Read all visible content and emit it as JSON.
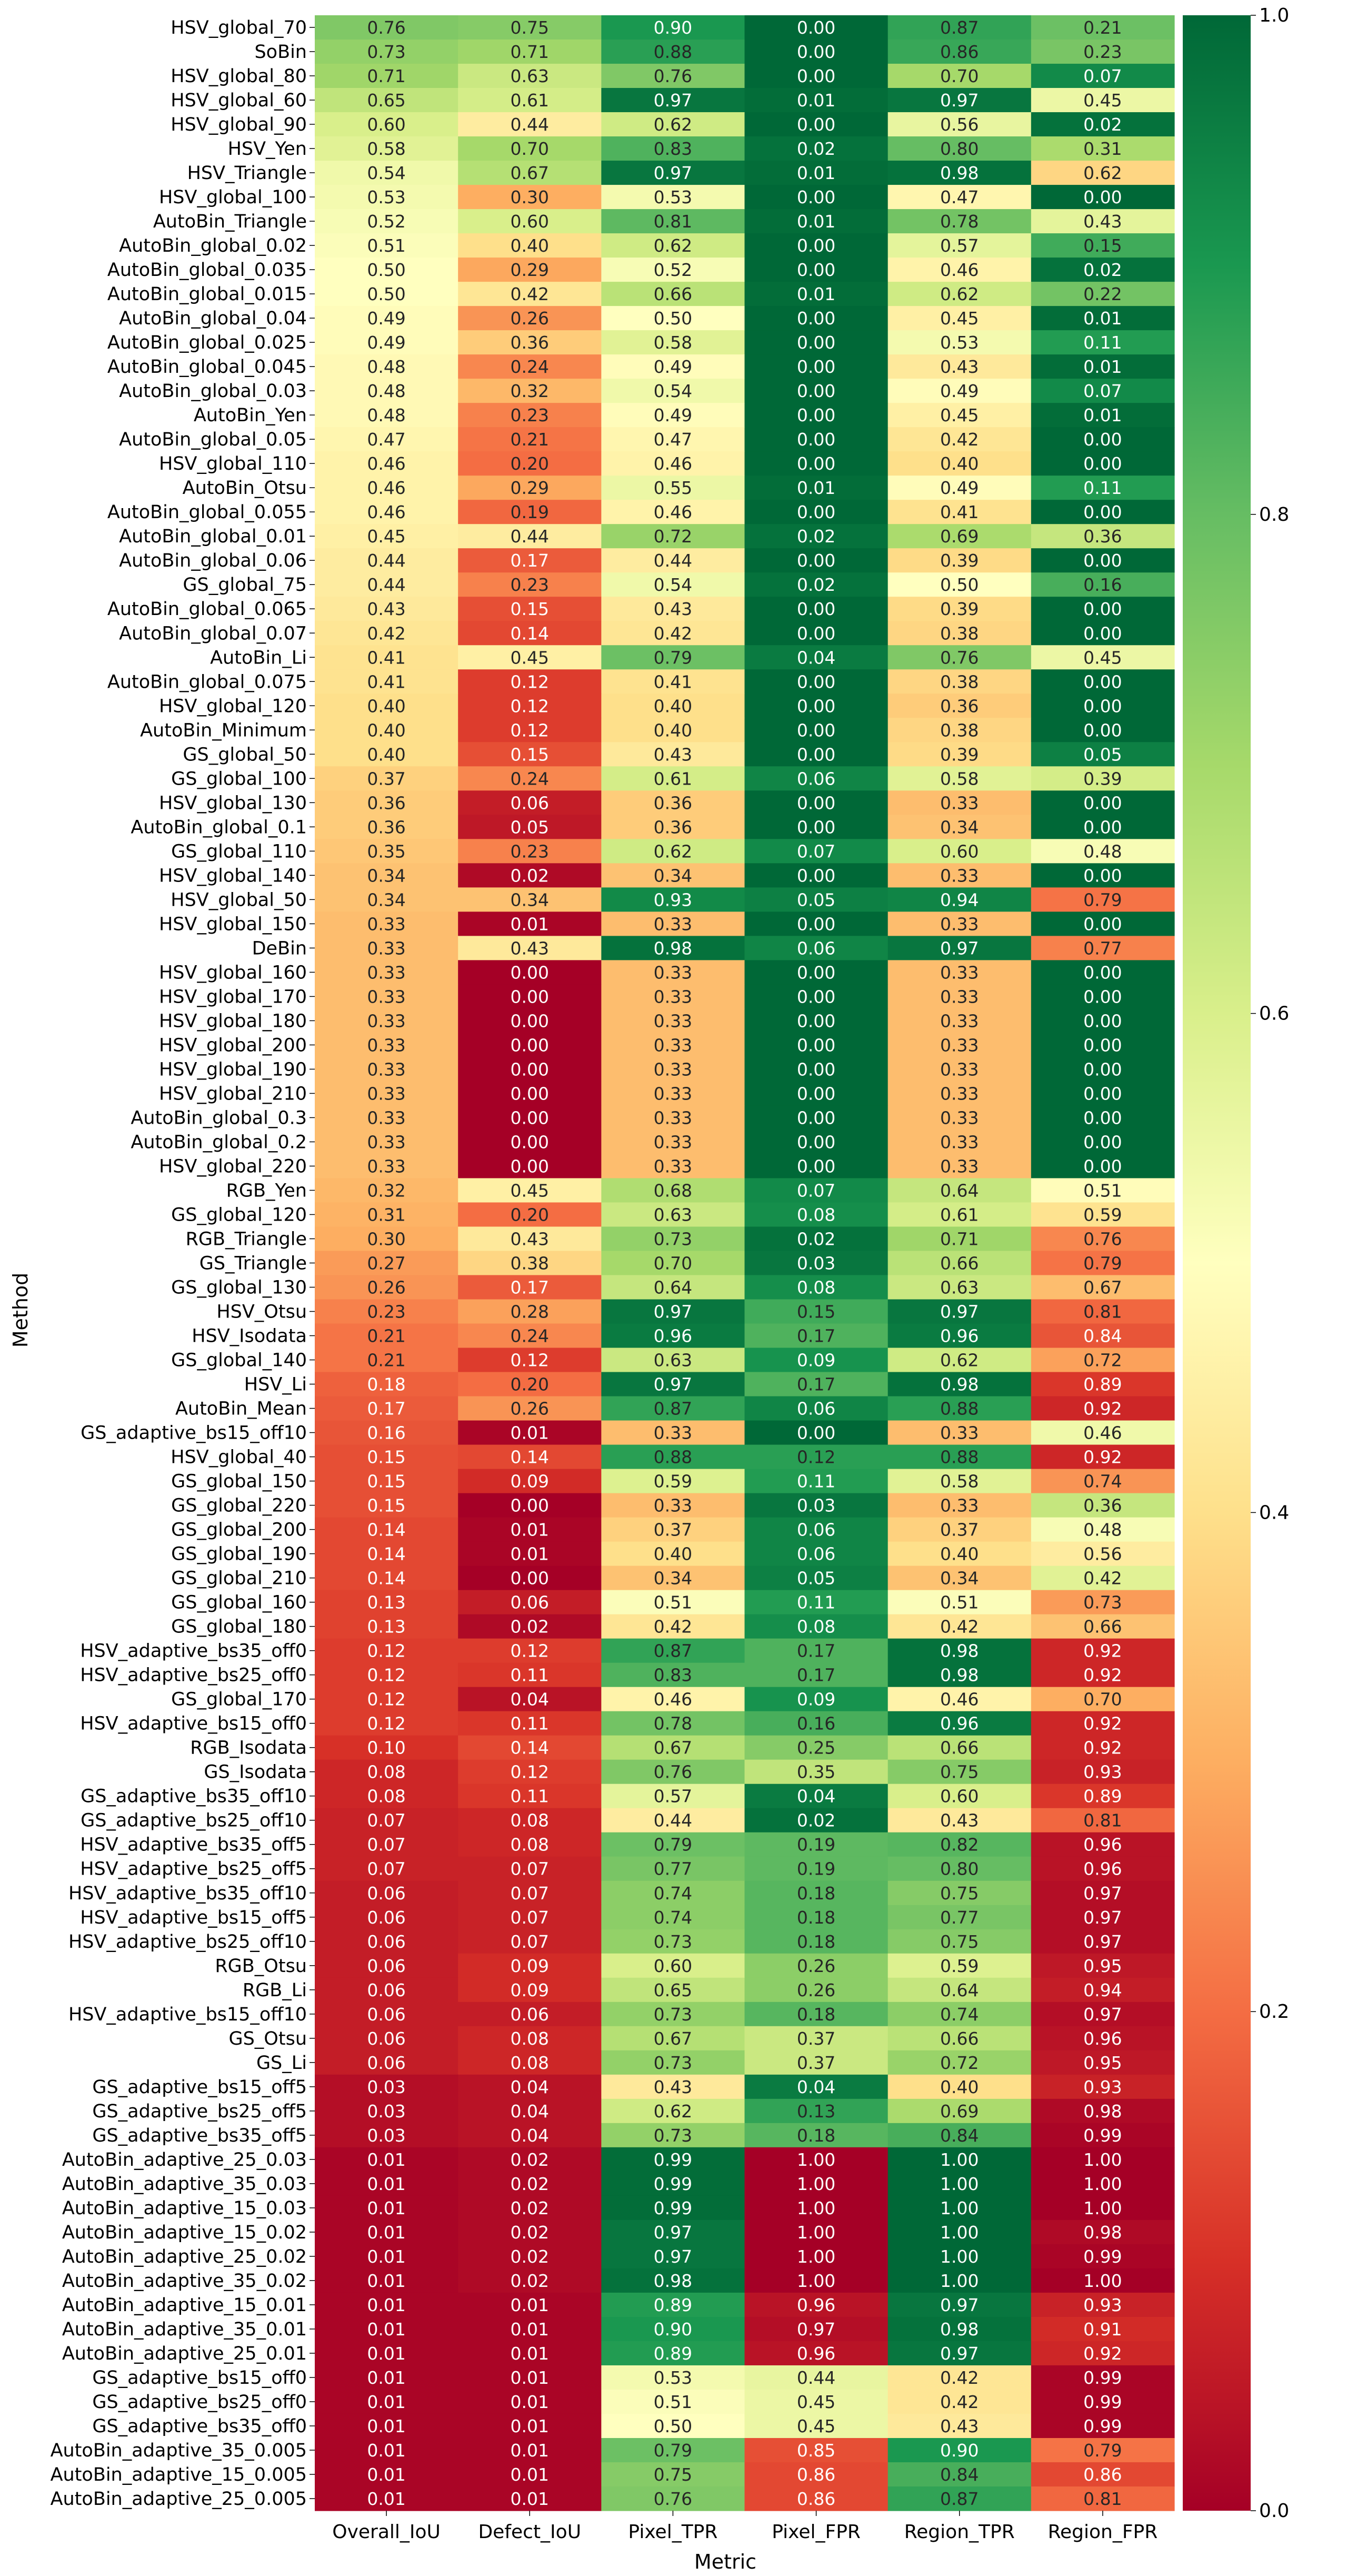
{
  "chart_data": {
    "type": "heatmap",
    "xlabel": "Metric",
    "ylabel": "Method",
    "columns": [
      "Overall_IoU",
      "Defect_IoU",
      "Pixel_TPR",
      "Pixel_FPR",
      "Region_TPR",
      "Region_FPR"
    ],
    "rows": [
      "HSV_global_70",
      "SoBin",
      "HSV_global_80",
      "HSV_global_60",
      "HSV_global_90",
      "HSV_Yen",
      "HSV_Triangle",
      "HSV_global_100",
      "AutoBin_Triangle",
      "AutoBin_global_0.02",
      "AutoBin_global_0.035",
      "AutoBin_global_0.015",
      "AutoBin_global_0.04",
      "AutoBin_global_0.025",
      "AutoBin_global_0.045",
      "AutoBin_global_0.03",
      "AutoBin_Yen",
      "AutoBin_global_0.05",
      "HSV_global_110",
      "AutoBin_Otsu",
      "AutoBin_global_0.055",
      "AutoBin_global_0.01",
      "AutoBin_global_0.06",
      "GS_global_75",
      "AutoBin_global_0.065",
      "AutoBin_global_0.07",
      "AutoBin_Li",
      "AutoBin_global_0.075",
      "HSV_global_120",
      "AutoBin_Minimum",
      "GS_global_50",
      "GS_global_100",
      "HSV_global_130",
      "AutoBin_global_0.1",
      "GS_global_110",
      "HSV_global_140",
      "HSV_global_50",
      "HSV_global_150",
      "DeBin",
      "HSV_global_160",
      "HSV_global_170",
      "HSV_global_180",
      "HSV_global_200",
      "HSV_global_190",
      "HSV_global_210",
      "AutoBin_global_0.3",
      "AutoBin_global_0.2",
      "HSV_global_220",
      "RGB_Yen",
      "GS_global_120",
      "RGB_Triangle",
      "GS_Triangle",
      "GS_global_130",
      "HSV_Otsu",
      "HSV_Isodata",
      "GS_global_140",
      "HSV_Li",
      "AutoBin_Mean",
      "GS_adaptive_bs15_off10",
      "HSV_global_40",
      "GS_global_150",
      "GS_global_220",
      "GS_global_200",
      "GS_global_190",
      "GS_global_210",
      "GS_global_160",
      "GS_global_180",
      "HSV_adaptive_bs35_off0",
      "HSV_adaptive_bs25_off0",
      "GS_global_170",
      "HSV_adaptive_bs15_off0",
      "RGB_Isodata",
      "GS_Isodata",
      "GS_adaptive_bs35_off10",
      "GS_adaptive_bs25_off10",
      "HSV_adaptive_bs35_off5",
      "HSV_adaptive_bs25_off5",
      "HSV_adaptive_bs35_off10",
      "HSV_adaptive_bs15_off5",
      "HSV_adaptive_bs25_off10",
      "RGB_Otsu",
      "RGB_Li",
      "HSV_adaptive_bs15_off10",
      "GS_Otsu",
      "GS_Li",
      "GS_adaptive_bs15_off5",
      "GS_adaptive_bs25_off5",
      "GS_adaptive_bs35_off5",
      "AutoBin_adaptive_25_0.03",
      "AutoBin_adaptive_35_0.03",
      "AutoBin_adaptive_15_0.03",
      "AutoBin_adaptive_15_0.02",
      "AutoBin_adaptive_25_0.02",
      "AutoBin_adaptive_35_0.02",
      "AutoBin_adaptive_15_0.01",
      "AutoBin_adaptive_35_0.01",
      "AutoBin_adaptive_25_0.01",
      "GS_adaptive_bs15_off0",
      "GS_adaptive_bs25_off0",
      "GS_adaptive_bs35_off0",
      "AutoBin_adaptive_35_0.005",
      "AutoBin_adaptive_15_0.005",
      "AutoBin_adaptive_25_0.005"
    ],
    "values": [
      [
        0.76,
        0.75,
        0.9,
        0.0,
        0.87,
        0.21
      ],
      [
        0.73,
        0.71,
        0.88,
        0.0,
        0.86,
        0.23
      ],
      [
        0.71,
        0.63,
        0.76,
        0.0,
        0.7,
        0.07
      ],
      [
        0.65,
        0.61,
        0.97,
        0.01,
        0.97,
        0.45
      ],
      [
        0.6,
        0.44,
        0.62,
        0.0,
        0.56,
        0.02
      ],
      [
        0.58,
        0.7,
        0.83,
        0.02,
        0.8,
        0.31
      ],
      [
        0.54,
        0.67,
        0.97,
        0.01,
        0.98,
        0.62
      ],
      [
        0.53,
        0.3,
        0.53,
        0.0,
        0.47,
        0.0
      ],
      [
        0.52,
        0.6,
        0.81,
        0.01,
        0.78,
        0.43
      ],
      [
        0.51,
        0.4,
        0.62,
        0.0,
        0.57,
        0.15
      ],
      [
        0.5,
        0.29,
        0.52,
        0.0,
        0.46,
        0.02
      ],
      [
        0.5,
        0.42,
        0.66,
        0.01,
        0.62,
        0.22
      ],
      [
        0.49,
        0.26,
        0.5,
        0.0,
        0.45,
        0.01
      ],
      [
        0.49,
        0.36,
        0.58,
        0.0,
        0.53,
        0.11
      ],
      [
        0.48,
        0.24,
        0.49,
        0.0,
        0.43,
        0.01
      ],
      [
        0.48,
        0.32,
        0.54,
        0.0,
        0.49,
        0.07
      ],
      [
        0.48,
        0.23,
        0.49,
        0.0,
        0.45,
        0.01
      ],
      [
        0.47,
        0.21,
        0.47,
        0.0,
        0.42,
        0.0
      ],
      [
        0.46,
        0.2,
        0.46,
        0.0,
        0.4,
        0.0
      ],
      [
        0.46,
        0.29,
        0.55,
        0.01,
        0.49,
        0.11
      ],
      [
        0.46,
        0.19,
        0.46,
        0.0,
        0.41,
        0.0
      ],
      [
        0.45,
        0.44,
        0.72,
        0.02,
        0.69,
        0.36
      ],
      [
        0.44,
        0.17,
        0.44,
        0.0,
        0.39,
        0.0
      ],
      [
        0.44,
        0.23,
        0.54,
        0.02,
        0.5,
        0.16
      ],
      [
        0.43,
        0.15,
        0.43,
        0.0,
        0.39,
        0.0
      ],
      [
        0.42,
        0.14,
        0.42,
        0.0,
        0.38,
        0.0
      ],
      [
        0.41,
        0.45,
        0.79,
        0.04,
        0.76,
        0.45
      ],
      [
        0.41,
        0.12,
        0.41,
        0.0,
        0.38,
        0.0
      ],
      [
        0.4,
        0.12,
        0.4,
        0.0,
        0.36,
        0.0
      ],
      [
        0.4,
        0.12,
        0.4,
        0.0,
        0.38,
        0.0
      ],
      [
        0.4,
        0.15,
        0.43,
        0.0,
        0.39,
        0.05
      ],
      [
        0.37,
        0.24,
        0.61,
        0.06,
        0.58,
        0.39
      ],
      [
        0.36,
        0.06,
        0.36,
        0.0,
        0.33,
        0.0
      ],
      [
        0.36,
        0.05,
        0.36,
        0.0,
        0.34,
        0.0
      ],
      [
        0.35,
        0.23,
        0.62,
        0.07,
        0.6,
        0.48
      ],
      [
        0.34,
        0.02,
        0.34,
        0.0,
        0.33,
        0.0
      ],
      [
        0.34,
        0.34,
        0.93,
        0.05,
        0.94,
        0.79
      ],
      [
        0.33,
        0.01,
        0.33,
        0.0,
        0.33,
        0.0
      ],
      [
        0.33,
        0.43,
        0.98,
        0.06,
        0.97,
        0.77
      ],
      [
        0.33,
        0.0,
        0.33,
        0.0,
        0.33,
        0.0
      ],
      [
        0.33,
        0.0,
        0.33,
        0.0,
        0.33,
        0.0
      ],
      [
        0.33,
        0.0,
        0.33,
        0.0,
        0.33,
        0.0
      ],
      [
        0.33,
        0.0,
        0.33,
        0.0,
        0.33,
        0.0
      ],
      [
        0.33,
        0.0,
        0.33,
        0.0,
        0.33,
        0.0
      ],
      [
        0.33,
        0.0,
        0.33,
        0.0,
        0.33,
        0.0
      ],
      [
        0.33,
        0.0,
        0.33,
        0.0,
        0.33,
        0.0
      ],
      [
        0.33,
        0.0,
        0.33,
        0.0,
        0.33,
        0.0
      ],
      [
        0.33,
        0.0,
        0.33,
        0.0,
        0.33,
        0.0
      ],
      [
        0.32,
        0.45,
        0.68,
        0.07,
        0.64,
        0.51
      ],
      [
        0.31,
        0.2,
        0.63,
        0.08,
        0.61,
        0.59
      ],
      [
        0.3,
        0.43,
        0.73,
        0.02,
        0.71,
        0.76
      ],
      [
        0.27,
        0.38,
        0.7,
        0.03,
        0.66,
        0.79
      ],
      [
        0.26,
        0.17,
        0.64,
        0.08,
        0.63,
        0.67
      ],
      [
        0.23,
        0.28,
        0.97,
        0.15,
        0.97,
        0.81
      ],
      [
        0.21,
        0.24,
        0.96,
        0.17,
        0.96,
        0.84
      ],
      [
        0.21,
        0.12,
        0.63,
        0.09,
        0.62,
        0.72
      ],
      [
        0.18,
        0.2,
        0.97,
        0.17,
        0.98,
        0.89
      ],
      [
        0.17,
        0.26,
        0.87,
        0.06,
        0.88,
        0.92
      ],
      [
        0.16,
        0.01,
        0.33,
        0.0,
        0.33,
        0.46
      ],
      [
        0.15,
        0.14,
        0.88,
        0.12,
        0.88,
        0.92
      ],
      [
        0.15,
        0.09,
        0.59,
        0.11,
        0.58,
        0.74
      ],
      [
        0.15,
        0.0,
        0.33,
        0.03,
        0.33,
        0.36
      ],
      [
        0.14,
        0.01,
        0.37,
        0.06,
        0.37,
        0.48
      ],
      [
        0.14,
        0.01,
        0.4,
        0.06,
        0.4,
        0.56
      ],
      [
        0.14,
        0.0,
        0.34,
        0.05,
        0.34,
        0.42
      ],
      [
        0.13,
        0.06,
        0.51,
        0.11,
        0.51,
        0.73
      ],
      [
        0.13,
        0.02,
        0.42,
        0.08,
        0.42,
        0.66
      ],
      [
        0.12,
        0.12,
        0.87,
        0.17,
        0.98,
        0.92
      ],
      [
        0.12,
        0.11,
        0.83,
        0.17,
        0.98,
        0.92
      ],
      [
        0.12,
        0.04,
        0.46,
        0.09,
        0.46,
        0.7
      ],
      [
        0.12,
        0.11,
        0.78,
        0.16,
        0.96,
        0.92
      ],
      [
        0.1,
        0.14,
        0.67,
        0.25,
        0.66,
        0.92
      ],
      [
        0.08,
        0.12,
        0.76,
        0.35,
        0.75,
        0.93
      ],
      [
        0.08,
        0.11,
        0.57,
        0.04,
        0.6,
        0.89
      ],
      [
        0.07,
        0.08,
        0.44,
        0.02,
        0.43,
        0.81
      ],
      [
        0.07,
        0.08,
        0.79,
        0.19,
        0.82,
        0.96
      ],
      [
        0.07,
        0.07,
        0.77,
        0.19,
        0.8,
        0.96
      ],
      [
        0.06,
        0.07,
        0.74,
        0.18,
        0.75,
        0.97
      ],
      [
        0.06,
        0.07,
        0.74,
        0.18,
        0.77,
        0.97
      ],
      [
        0.06,
        0.07,
        0.73,
        0.18,
        0.75,
        0.97
      ],
      [
        0.06,
        0.09,
        0.6,
        0.26,
        0.59,
        0.95
      ],
      [
        0.06,
        0.09,
        0.65,
        0.26,
        0.64,
        0.94
      ],
      [
        0.06,
        0.06,
        0.73,
        0.18,
        0.74,
        0.97
      ],
      [
        0.06,
        0.08,
        0.67,
        0.37,
        0.66,
        0.96
      ],
      [
        0.06,
        0.08,
        0.73,
        0.37,
        0.72,
        0.95
      ],
      [
        0.03,
        0.04,
        0.43,
        0.04,
        0.4,
        0.93
      ],
      [
        0.03,
        0.04,
        0.62,
        0.13,
        0.69,
        0.98
      ],
      [
        0.03,
        0.04,
        0.73,
        0.18,
        0.84,
        0.99
      ],
      [
        0.01,
        0.02,
        0.99,
        1.0,
        1.0,
        1.0
      ],
      [
        0.01,
        0.02,
        0.99,
        1.0,
        1.0,
        1.0
      ],
      [
        0.01,
        0.02,
        0.99,
        1.0,
        1.0,
        1.0
      ],
      [
        0.01,
        0.02,
        0.97,
        1.0,
        1.0,
        0.98
      ],
      [
        0.01,
        0.02,
        0.97,
        1.0,
        1.0,
        0.99
      ],
      [
        0.01,
        0.02,
        0.98,
        1.0,
        1.0,
        1.0
      ],
      [
        0.01,
        0.01,
        0.89,
        0.96,
        0.97,
        0.93
      ],
      [
        0.01,
        0.01,
        0.9,
        0.97,
        0.98,
        0.91
      ],
      [
        0.01,
        0.01,
        0.89,
        0.96,
        0.97,
        0.92
      ],
      [
        0.01,
        0.01,
        0.53,
        0.44,
        0.42,
        0.99
      ],
      [
        0.01,
        0.01,
        0.51,
        0.45,
        0.42,
        0.99
      ],
      [
        0.01,
        0.01,
        0.5,
        0.45,
        0.43,
        0.99
      ],
      [
        0.01,
        0.01,
        0.79,
        0.85,
        0.9,
        0.79
      ],
      [
        0.01,
        0.01,
        0.75,
        0.86,
        0.84,
        0.86
      ],
      [
        0.01,
        0.01,
        0.76,
        0.86,
        0.87,
        0.81
      ]
    ],
    "color_semantics": {
      "Overall_IoU": "higher-better",
      "Defect_IoU": "higher-better",
      "Pixel_TPR": "higher-better",
      "Pixel_FPR": "lower-better",
      "Region_TPR": "higher-better",
      "Region_FPR": "lower-better"
    },
    "colormap": "RdYlGn",
    "colorbar": {
      "range": [
        0.0,
        1.0
      ],
      "ticks": [
        "0.0",
        "0.2",
        "0.4",
        "0.6",
        "0.8",
        "1.0"
      ]
    }
  }
}
